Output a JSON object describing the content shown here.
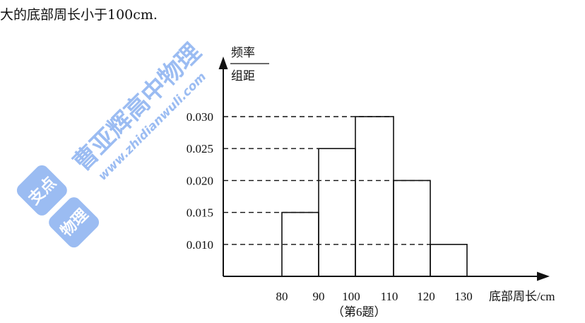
{
  "header": {
    "text": "大的底部周长小于100cm."
  },
  "watermark": {
    "line1": "曹亚辉高中物理",
    "line2": "www.zhidianwuli.com",
    "badge_top": "支点",
    "badge_bottom": "物理",
    "color": "#4a86e8"
  },
  "chart_data": {
    "type": "bar",
    "title": "",
    "xlabel": "底部周长/cm",
    "ylabel_numerator": "频率",
    "ylabel_denominator": "组距",
    "bins": [
      [
        80,
        90
      ],
      [
        90,
        100
      ],
      [
        100,
        110
      ],
      [
        110,
        120
      ],
      [
        120,
        130
      ]
    ],
    "values": [
      0.015,
      0.025,
      0.03,
      0.02,
      0.01
    ],
    "x_ticks": [
      "80",
      "90",
      "100",
      "110",
      "120",
      "130"
    ],
    "y_ticks": [
      "0.010",
      "0.015",
      "0.020",
      "0.025",
      "0.030"
    ],
    "caption": "（第6题）",
    "grid": false
  }
}
